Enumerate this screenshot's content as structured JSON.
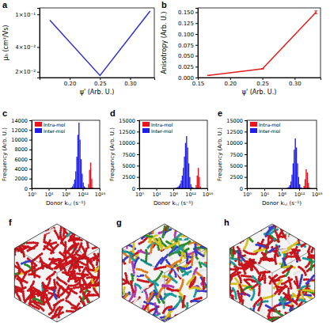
{
  "chart_data": [
    {
      "type": "line",
      "panel_label": "a",
      "x": [
        0.167,
        0.25,
        0.333
      ],
      "values": [
        0.085,
        0.018,
        0.11
      ],
      "color": "#3030d0",
      "xlim": [
        0.15,
        0.34
      ],
      "ylim": [
        0.017,
        0.12
      ],
      "log": "y",
      "xticks": [
        {
          "value": 0.2,
          "label": "0.20"
        },
        {
          "value": 0.25,
          "label": "0.25"
        },
        {
          "value": 0.3,
          "label": "0.30"
        }
      ],
      "yticks": [
        {
          "value": 0.1,
          "label": "1×10⁻¹"
        },
        {
          "value": 0.04,
          "label": "4×10⁻²"
        },
        {
          "value": 0.02,
          "label": "2×10⁻²"
        }
      ],
      "x_label": "ψ' (Arb. U.)",
      "y_label": "μₕ (cm²/Vs)"
    },
    {
      "type": "line",
      "panel_label": "b",
      "x": [
        0.167,
        0.25,
        0.333
      ],
      "values": [
        0.005,
        0.02,
        0.15
      ],
      "errors": [
        0,
        0,
        0.003
      ],
      "color": "#e02020",
      "xlim": [
        0.15,
        0.34
      ],
      "ylim": [
        0,
        0.16
      ],
      "xticks": [
        {
          "value": 0.15,
          "label": "0.15"
        },
        {
          "value": 0.2,
          "label": "0.20"
        },
        {
          "value": 0.25,
          "label": "0.25"
        },
        {
          "value": 0.3,
          "label": "0.30"
        }
      ],
      "yticks": [
        {
          "value": 0,
          "label": "0.000"
        },
        {
          "value": 0.025,
          "label": "0.025"
        },
        {
          "value": 0.05,
          "label": "0.050"
        },
        {
          "value": 0.075,
          "label": "0.075"
        },
        {
          "value": 0.1,
          "label": "0.100"
        },
        {
          "value": 0.125,
          "label": "0.125"
        },
        {
          "value": 0.15,
          "label": "0.150"
        }
      ],
      "x_label": "ψ' (Arb. U.)",
      "y_label": "Anisotropy (Arb. U.)"
    },
    {
      "type": "histogram",
      "panel_label": "c",
      "log": "x",
      "legend": "upper left",
      "bins": [
        10000000.0,
        17800000.0,
        31600000.0,
        56200000.0,
        100000000.0,
        178000000.0,
        316000000.0,
        562000000.0,
        1000000000.0,
        1780000000.0,
        3160000000.0,
        5620000000.0,
        10000000000.0,
        17800000000.0,
        31600000000.0,
        56200000000.0,
        100000000000.0,
        178000000000.0,
        316000000000.0,
        562000000000.0,
        1000000000000.0,
        1780000000000.0,
        3160000000000.0,
        5620000000000.0,
        10000000000000.0,
        17800000000000.0,
        31600000000000.0,
        56200000000000.0,
        100000000000000.0,
        178000000000000.0,
        316000000000000.0,
        562000000000000.0,
        1000000000000000.0
      ],
      "series": [
        {
          "name": "Intra-mol",
          "color": "#e8141e",
          "values": [
            0,
            0,
            0,
            0,
            0,
            0,
            0,
            0,
            0,
            0,
            0,
            0,
            0,
            0,
            0,
            0,
            0,
            0,
            0,
            0,
            0,
            0,
            0,
            0,
            0,
            900,
            3800,
            5300,
            2000,
            200,
            0,
            0
          ]
        },
        {
          "name": "Inter-mol",
          "color": "#1f1fe6",
          "values": [
            0,
            0,
            0,
            0,
            0,
            0,
            0,
            0,
            50,
            150,
            400,
            900,
            1800,
            3500,
            6500,
            11000,
            13500,
            10000,
            6000,
            3000,
            1200,
            400,
            150,
            50,
            0,
            0,
            0,
            0,
            0,
            0,
            0,
            0
          ]
        }
      ],
      "xlim": [
        1,
        1e+16
      ],
      "ylim": [
        0,
        14000
      ],
      "xticks": [
        {
          "value": 1,
          "label": "10⁰"
        },
        {
          "value": 10000.0,
          "label": "10⁴"
        },
        {
          "value": 100000000.0,
          "label": "10⁸"
        },
        {
          "value": 1000000000000.0,
          "label": "10¹²"
        },
        {
          "value": 1e+16,
          "label": "10¹⁶"
        }
      ],
      "yticks": [
        0,
        2000,
        4000,
        6000,
        8000,
        10000,
        12000,
        14000
      ],
      "x_label": "Donor kᵢ,ⱼ (s⁻¹)",
      "y_label": "Frequency (Arb. U.)"
    },
    {
      "type": "histogram",
      "panel_label": "d",
      "log": "x",
      "legend": "upper left",
      "bins": [
        10000000.0,
        17800000.0,
        31600000.0,
        56200000.0,
        100000000.0,
        178000000.0,
        316000000.0,
        562000000.0,
        1000000000.0,
        1780000000.0,
        3160000000.0,
        5620000000.0,
        10000000000.0,
        17800000000.0,
        31600000000.0,
        56200000000.0,
        100000000000.0,
        178000000000.0,
        316000000000.0,
        562000000000.0,
        1000000000000.0,
        1780000000000.0,
        3160000000000.0,
        5620000000000.0,
        10000000000000.0,
        17800000000000.0,
        31600000000000.0,
        56200000000000.0,
        100000000000000.0,
        178000000000000.0,
        316000000000000.0,
        562000000000000.0,
        1000000000000000.0
      ],
      "series": [
        {
          "name": "Intra-mol",
          "color": "#e8141e",
          "values": [
            0,
            0,
            0,
            0,
            0,
            0,
            0,
            0,
            0,
            0,
            0,
            0,
            0,
            0,
            0,
            0,
            0,
            0,
            0,
            0,
            0,
            0,
            0,
            0,
            0,
            700,
            2800,
            4500,
            2500,
            400,
            0,
            0
          ]
        },
        {
          "name": "Inter-mol",
          "color": "#1f1fe6",
          "values": [
            0,
            0,
            0,
            0,
            30,
            60,
            100,
            200,
            350,
            600,
            1000,
            1700,
            2800,
            4500,
            7000,
            10000,
            11500,
            9000,
            5500,
            2500,
            900,
            300,
            100,
            30,
            0,
            0,
            0,
            0,
            0,
            0,
            0,
            0
          ]
        }
      ],
      "xlim": [
        1,
        1e+16
      ],
      "ylim": [
        0,
        15000
      ],
      "xticks": [
        {
          "value": 1,
          "label": "10⁰"
        },
        {
          "value": 10000.0,
          "label": "10⁴"
        },
        {
          "value": 100000000.0,
          "label": "10⁸"
        },
        {
          "value": 1000000000000.0,
          "label": "10¹²"
        },
        {
          "value": 1e+16,
          "label": "10¹⁶"
        }
      ],
      "yticks": [
        0,
        2500,
        5000,
        7500,
        10000,
        12500,
        15000
      ],
      "x_label": "Donor kᵢ,ⱼ (s⁻¹)",
      "y_label": "Frequency (Arb. U.)"
    },
    {
      "type": "histogram",
      "panel_label": "e",
      "log": "x",
      "legend": "upper left",
      "bins": [
        10000000.0,
        17800000.0,
        31600000.0,
        56200000.0,
        100000000.0,
        178000000.0,
        316000000.0,
        562000000.0,
        1000000000.0,
        1780000000.0,
        3160000000.0,
        5620000000.0,
        10000000000.0,
        17800000000.0,
        31600000000.0,
        56200000000.0,
        100000000000.0,
        178000000000.0,
        316000000000.0,
        562000000000.0,
        1000000000000.0,
        1780000000000.0,
        3160000000000.0,
        5620000000000.0,
        10000000000000.0,
        17800000000000.0,
        31600000000000.0,
        56200000000000.0,
        100000000000000.0,
        178000000000000.0,
        316000000000000.0,
        562000000000000.0,
        1000000000000000.0
      ],
      "series": [
        {
          "name": "Intra-mol",
          "color": "#e8141e",
          "values": [
            0,
            0,
            0,
            0,
            0,
            0,
            0,
            0,
            0,
            0,
            0,
            0,
            0,
            0,
            0,
            0,
            0,
            0,
            0,
            0,
            0,
            0,
            0,
            0,
            500,
            2000,
            4200,
            3500,
            1200,
            200,
            0,
            0
          ]
        },
        {
          "name": "Inter-mol",
          "color": "#1f1fe6",
          "values": [
            0,
            0,
            0,
            0,
            0,
            0,
            0,
            0,
            50,
            120,
            300,
            700,
            1500,
            3000,
            5500,
            8500,
            11000,
            9000,
            5500,
            2500,
            900,
            250,
            60,
            0,
            0,
            0,
            0,
            0,
            0,
            0,
            0,
            0
          ]
        }
      ],
      "xlim": [
        1,
        1e+16
      ],
      "ylim": [
        0,
        15000
      ],
      "xticks": [
        {
          "value": 1,
          "label": "10⁰"
        },
        {
          "value": 10000.0,
          "label": "10⁴"
        },
        {
          "value": 100000000.0,
          "label": "10⁸"
        },
        {
          "value": 1000000000000.0,
          "label": "10¹²"
        },
        {
          "value": 1e+16,
          "label": "10¹⁶"
        }
      ],
      "yticks": [
        0,
        2500,
        5000,
        7500,
        10000,
        12500,
        15000
      ],
      "x_label": "Donor kᵢ,ⱼ (s⁻¹)",
      "y_label": "Frequency (Arb. U.)"
    }
  ],
  "images": [
    {
      "panel_label": "f"
    },
    {
      "panel_label": "g"
    },
    {
      "panel_label": "h"
    }
  ]
}
